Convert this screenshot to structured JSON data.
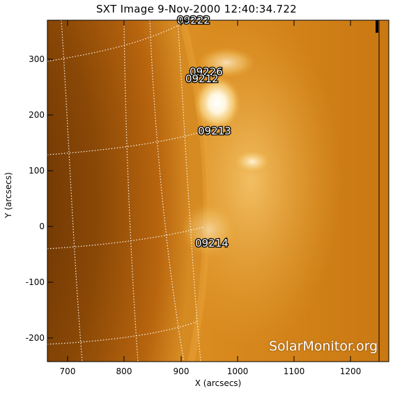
{
  "title": "SXT Image   9-Nov-2000  12:40:34.722",
  "axes": {
    "xlabel": "X (arcsecs)",
    "ylabel": "Y (arcsecs)",
    "xticks": [
      "700",
      "800",
      "900",
      "1000",
      "1100",
      "1200"
    ],
    "yticks": [
      "300",
      "200",
      "100",
      "0",
      "-100",
      "-200"
    ]
  },
  "regions": [
    {
      "id": "09222"
    },
    {
      "id": "09226"
    },
    {
      "id": "09212"
    },
    {
      "id": "09213"
    },
    {
      "id": "09214"
    }
  ],
  "watermark": "SolarMonitor.org",
  "colors": {
    "disk_dark": "#7a3e05",
    "disk_mid": "#b8650e",
    "limb": "#e8a034",
    "corona": "#d98a1e",
    "flare": "#ffffff",
    "grid": "#ffffff"
  }
}
